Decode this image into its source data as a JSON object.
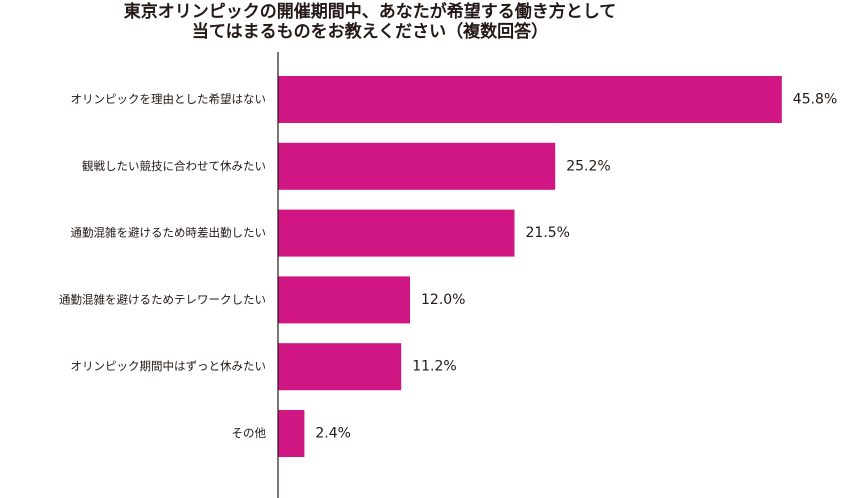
{
  "chart_data": {
    "type": "bar",
    "orientation": "horizontal",
    "title_lines": [
      "東京オリンピックの開催期間中、あなたが希望する働き方として",
      "当てはまるものをお教えください（複数回答）"
    ],
    "categories": [
      "オリンピックを理由とした希望はない",
      "観戦したい競技に合わせて休みたい",
      "通勤混雑を避けるため時差出勤したい",
      "通勤混雑を避けるためテレワークしたい",
      "オリンピック期間中はずっと休みたい",
      "その他"
    ],
    "values": [
      45.8,
      25.2,
      21.5,
      12.0,
      11.2,
      2.4
    ],
    "value_labels": [
      "45.8%",
      "25.2%",
      "21.5%",
      "12.0%",
      "11.2%",
      "2.4%"
    ],
    "xlim": [
      0,
      50
    ],
    "bar_color": "#cf1682",
    "axis_color": "#231815",
    "grid": false,
    "legend": "none"
  }
}
